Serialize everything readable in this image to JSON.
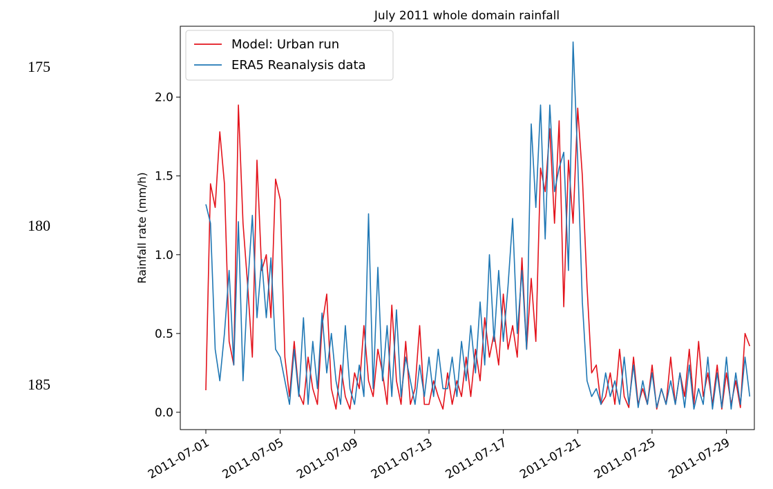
{
  "line_numbers": [
    175,
    180,
    185
  ],
  "chart_data": {
    "type": "line",
    "title": "July 2011 whole domain rainfall",
    "ylabel": "Rainfall rate (mm/h)",
    "legend": "upper left",
    "grid": false,
    "xlim": [
      "2011-06-29 15:00",
      "2011-07-30 12:00"
    ],
    "xticks": [
      "2011-07-01",
      "2011-07-05",
      "2011-07-09",
      "2011-07-13",
      "2011-07-17",
      "2011-07-21",
      "2011-07-25",
      "2011-07-29"
    ],
    "ylim": [
      -0.11,
      2.45
    ],
    "yticks": [
      {
        "value": 0,
        "label": "0.0"
      },
      0.5,
      {
        "value": 1,
        "label": "1.0"
      },
      1.5,
      {
        "value": 2,
        "label": "2.0"
      }
    ],
    "x": [
      "2011-07-01 00:00",
      "2011-07-01 06:00",
      "2011-07-01 12:00",
      "2011-07-01 18:00",
      "2011-07-02 00:00",
      "2011-07-02 06:00",
      "2011-07-02 12:00",
      "2011-07-02 18:00",
      "2011-07-03 00:00",
      "2011-07-03 06:00",
      "2011-07-03 12:00",
      "2011-07-03 18:00",
      "2011-07-04 00:00",
      "2011-07-04 06:00",
      "2011-07-04 12:00",
      "2011-07-04 18:00",
      "2011-07-05 00:00",
      "2011-07-05 06:00",
      "2011-07-05 12:00",
      "2011-07-05 18:00",
      "2011-07-06 00:00",
      "2011-07-06 06:00",
      "2011-07-06 12:00",
      "2011-07-06 18:00",
      "2011-07-07 00:00",
      "2011-07-07 06:00",
      "2011-07-07 12:00",
      "2011-07-07 18:00",
      "2011-07-08 00:00",
      "2011-07-08 06:00",
      "2011-07-08 12:00",
      "2011-07-08 18:00",
      "2011-07-09 00:00",
      "2011-07-09 06:00",
      "2011-07-09 12:00",
      "2011-07-09 18:00",
      "2011-07-10 00:00",
      "2011-07-10 06:00",
      "2011-07-10 12:00",
      "2011-07-10 18:00",
      "2011-07-11 00:00",
      "2011-07-11 06:00",
      "2011-07-11 12:00",
      "2011-07-11 18:00",
      "2011-07-12 00:00",
      "2011-07-12 06:00",
      "2011-07-12 12:00",
      "2011-07-12 18:00",
      "2011-07-13 00:00",
      "2011-07-13 06:00",
      "2011-07-13 12:00",
      "2011-07-13 18:00",
      "2011-07-14 00:00",
      "2011-07-14 06:00",
      "2011-07-14 12:00",
      "2011-07-14 18:00",
      "2011-07-15 00:00",
      "2011-07-15 06:00",
      "2011-07-15 12:00",
      "2011-07-15 18:00",
      "2011-07-16 00:00",
      "2011-07-16 06:00",
      "2011-07-16 12:00",
      "2011-07-16 18:00",
      "2011-07-17 00:00",
      "2011-07-17 06:00",
      "2011-07-17 12:00",
      "2011-07-17 18:00",
      "2011-07-18 00:00",
      "2011-07-18 06:00",
      "2011-07-18 12:00",
      "2011-07-18 18:00",
      "2011-07-19 00:00",
      "2011-07-19 06:00",
      "2011-07-19 12:00",
      "2011-07-19 18:00",
      "2011-07-20 00:00",
      "2011-07-20 06:00",
      "2011-07-20 12:00",
      "2011-07-20 18:00",
      "2011-07-21 00:00",
      "2011-07-21 06:00",
      "2011-07-21 12:00",
      "2011-07-21 18:00",
      "2011-07-22 00:00",
      "2011-07-22 06:00",
      "2011-07-22 12:00",
      "2011-07-22 18:00",
      "2011-07-23 00:00",
      "2011-07-23 06:00",
      "2011-07-23 12:00",
      "2011-07-23 18:00",
      "2011-07-24 00:00",
      "2011-07-24 06:00",
      "2011-07-24 12:00",
      "2011-07-24 18:00",
      "2011-07-25 00:00",
      "2011-07-25 06:00",
      "2011-07-25 12:00",
      "2011-07-25 18:00",
      "2011-07-26 00:00",
      "2011-07-26 06:00",
      "2011-07-26 12:00",
      "2011-07-26 18:00",
      "2011-07-27 00:00",
      "2011-07-27 06:00",
      "2011-07-27 12:00",
      "2011-07-27 18:00",
      "2011-07-28 00:00",
      "2011-07-28 06:00",
      "2011-07-28 12:00",
      "2011-07-28 18:00",
      "2011-07-29 00:00",
      "2011-07-29 06:00",
      "2011-07-29 12:00",
      "2011-07-29 18:00",
      "2011-07-30 00:00",
      "2011-07-30 06:00"
    ],
    "series": [
      {
        "name": "Model: Urban run",
        "color": "#e3121b",
        "values": [
          0.14,
          1.45,
          1.3,
          1.78,
          1.45,
          0.45,
          0.3,
          1.95,
          1.2,
          0.8,
          0.35,
          1.6,
          0.9,
          1.0,
          0.6,
          1.48,
          1.35,
          0.35,
          0.1,
          0.45,
          0.12,
          0.05,
          0.35,
          0.15,
          0.05,
          0.55,
          0.75,
          0.15,
          0.02,
          0.3,
          0.1,
          0.02,
          0.25,
          0.15,
          0.55,
          0.2,
          0.1,
          0.4,
          0.25,
          0.05,
          0.68,
          0.2,
          0.05,
          0.45,
          0.05,
          0.15,
          0.55,
          0.05,
          0.05,
          0.2,
          0.1,
          0.02,
          0.25,
          0.05,
          0.2,
          0.1,
          0.35,
          0.1,
          0.4,
          0.2,
          0.6,
          0.35,
          0.5,
          0.3,
          0.75,
          0.4,
          0.55,
          0.35,
          0.98,
          0.4,
          0.85,
          0.45,
          1.55,
          1.4,
          1.8,
          1.2,
          1.85,
          0.67,
          1.6,
          1.2,
          1.93,
          1.5,
          0.8,
          0.25,
          0.3,
          0.05,
          0.1,
          0.25,
          0.05,
          0.4,
          0.1,
          0.03,
          0.35,
          0.05,
          0.15,
          0.05,
          0.3,
          0.02,
          0.15,
          0.05,
          0.35,
          0.05,
          0.25,
          0.1,
          0.4,
          0.05,
          0.45,
          0.1,
          0.25,
          0.05,
          0.3,
          0.02,
          0.25,
          0.05,
          0.2,
          0.03,
          0.5,
          0.42
        ]
      },
      {
        "name": "ERA5 Reanalysis data",
        "color": "#1f77b4",
        "values": [
          1.32,
          1.2,
          0.4,
          0.2,
          0.5,
          0.9,
          0.3,
          1.21,
          0.2,
          0.8,
          1.25,
          0.6,
          0.97,
          0.6,
          0.98,
          0.4,
          0.35,
          0.2,
          0.05,
          0.4,
          0.1,
          0.6,
          0.05,
          0.45,
          0.15,
          0.63,
          0.25,
          0.5,
          0.2,
          0.05,
          0.55,
          0.15,
          0.05,
          0.3,
          0.1,
          1.26,
          0.15,
          0.92,
          0.2,
          0.55,
          0.1,
          0.65,
          0.1,
          0.35,
          0.2,
          0.05,
          0.3,
          0.1,
          0.35,
          0.1,
          0.4,
          0.15,
          0.15,
          0.35,
          0.1,
          0.45,
          0.2,
          0.55,
          0.25,
          0.7,
          0.3,
          1.0,
          0.45,
          0.9,
          0.45,
          0.8,
          1.23,
          0.5,
          0.9,
          0.4,
          1.83,
          1.3,
          1.95,
          1.1,
          1.95,
          1.4,
          1.55,
          1.65,
          0.9,
          2.35,
          1.6,
          0.7,
          0.2,
          0.1,
          0.15,
          0.05,
          0.25,
          0.1,
          0.2,
          0.05,
          0.35,
          0.05,
          0.3,
          0.03,
          0.2,
          0.05,
          0.25,
          0.03,
          0.15,
          0.05,
          0.2,
          0.05,
          0.25,
          0.03,
          0.3,
          0.02,
          0.15,
          0.05,
          0.35,
          0.02,
          0.25,
          0.03,
          0.35,
          0.02,
          0.25,
          0.05,
          0.35,
          0.1
        ]
      }
    ]
  }
}
